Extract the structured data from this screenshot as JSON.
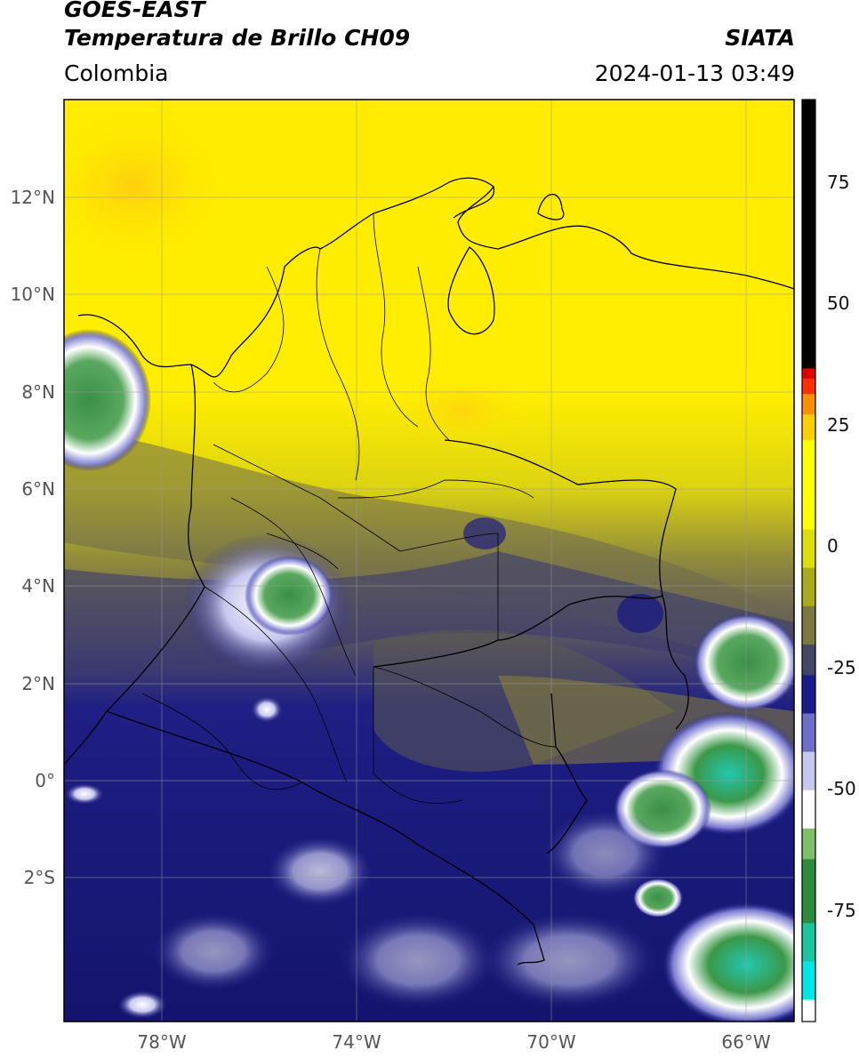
{
  "header": {
    "satellite": "GOES-EAST",
    "product": "Temperatura de Brillo CH09",
    "agency": "SIATA",
    "region": "Colombia",
    "datetime": "2024-01-13 03:49"
  },
  "map": {
    "lat_ticks": [
      "12°N",
      "10°N",
      "8°N",
      "6°N",
      "4°N",
      "2°N",
      "0°",
      "2°S"
    ],
    "lon_ticks": [
      "78°W",
      "74°W",
      "70°W",
      "66°W"
    ],
    "grid": true
  },
  "colorbar": {
    "ticks": [
      "75",
      "50",
      "25",
      "0",
      "-25",
      "-50",
      "-75"
    ],
    "palette": [
      "#00e5e5",
      "#1cc4a0",
      "#2e8b3e",
      "#7fbf6a",
      "#ffffff",
      "#c8c8ee",
      "#6e6ec8",
      "#1a1a8a",
      "#454565",
      "#7a7a40",
      "#aaaa1c",
      "#dddd08",
      "#ffff00",
      "#ffd000",
      "#ff9000",
      "#ff3000",
      "#e00000",
      "#000000"
    ]
  }
}
